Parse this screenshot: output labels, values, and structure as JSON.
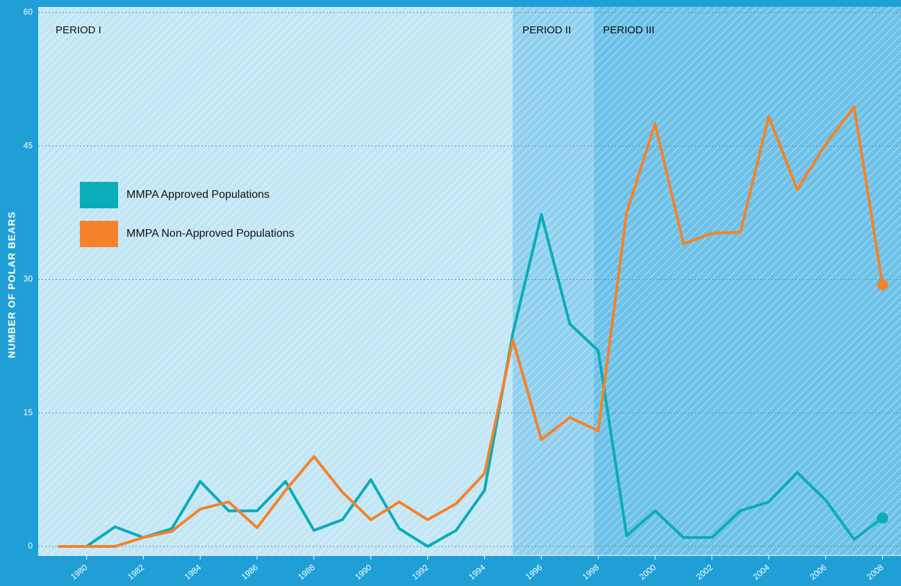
{
  "chart_data": {
    "type": "line",
    "y_label": "NUMBER OF POLAR BEARS",
    "annotations": [
      "PERIOD I",
      "PERIOD II",
      "PERIOD III"
    ],
    "x": [
      1979,
      1980,
      1981,
      1982,
      1983,
      1984,
      1985,
      1986,
      1987,
      1988,
      1989,
      1990,
      1991,
      1992,
      1993,
      1994,
      1995,
      1996,
      1997,
      1998,
      1999,
      2000,
      2001,
      2002,
      2003,
      2004,
      2005,
      2006,
      2007,
      2008
    ],
    "series": [
      {
        "name": "MMPA Approved Populations",
        "color": "#0aacb8",
        "values": [
          0,
          0,
          2.2,
          1,
          2,
          7.3,
          4,
          4,
          7.3,
          1.8,
          3,
          7.5,
          2,
          0,
          1.8,
          6.3,
          24,
          37.3,
          25,
          22,
          1.2,
          4,
          1,
          1,
          4,
          5,
          8.3,
          5.2,
          0.8,
          3.2
        ]
      },
      {
        "name": "MMPA Non-Approved Populations",
        "color": "#f5822a",
        "values": [
          0,
          0,
          0,
          1,
          1.7,
          4.2,
          5,
          2.1,
          6.3,
          10.1,
          6.1,
          3,
          5,
          3,
          4.8,
          8.2,
          23.2,
          12,
          14.5,
          13,
          37.5,
          47.5,
          34,
          35.2,
          35.3,
          48.3,
          40.1,
          45.2,
          49.4,
          29.4
        ]
      }
    ],
    "xlim": [
      1978.3,
      2008.65
    ],
    "xticks": [
      1980,
      1982,
      1984,
      1986,
      1988,
      1990,
      1992,
      1994,
      1996,
      1998,
      2000,
      2002,
      2004,
      2006,
      2008
    ],
    "ylim": [
      0,
      60
    ],
    "yticks": [
      0,
      15,
      30,
      45,
      60
    ],
    "grid": true
  }
}
